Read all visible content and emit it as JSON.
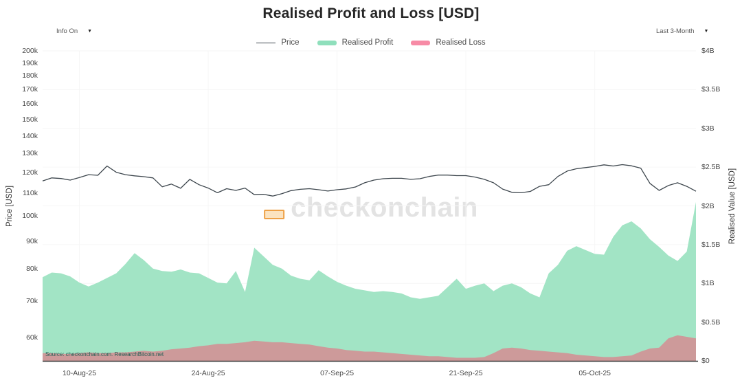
{
  "header": {
    "title": "Realised Profit and Loss [USD]"
  },
  "controls": {
    "info_dropdown": {
      "label": "Info On",
      "icon": "▼"
    },
    "range_dropdown": {
      "label": "Last 3-Month",
      "icon": "▼"
    }
  },
  "legend": {
    "items": [
      {
        "label": "Price",
        "swatch": "line",
        "color": "#3d464d"
      },
      {
        "label": "Realised Profit",
        "swatch": "area",
        "color": "#8fdfbc"
      },
      {
        "label": "Realised Loss",
        "swatch": "area",
        "color": "#f78ba6"
      }
    ]
  },
  "watermark": {
    "text": "checkonchain",
    "accent_color": "#eea147"
  },
  "source_note": "Source: checkonchain.com. ResearchBitcoin.net",
  "chart_data": {
    "type": "area",
    "title": "Realised Profit and Loss [USD]",
    "legend_position": "top-center",
    "grid": "very-faint",
    "x": {
      "interval": "daily",
      "n_points": 72,
      "start_label": "06-Aug-25",
      "end_label": "16-Oct-25",
      "tick_labels": [
        "10-Aug-25",
        "24-Aug-25",
        "07-Sep-25",
        "21-Sep-25",
        "05-Oct-25"
      ],
      "tick_indices": [
        4,
        18,
        32,
        46,
        60
      ]
    },
    "axes": {
      "left": {
        "label": "Price [USD]",
        "scale": "log",
        "ylim": [
          54380,
          200000
        ],
        "tick_labels": [
          "200k",
          "190k",
          "180k",
          "170k",
          "160k",
          "150k",
          "140k",
          "130k",
          "120k",
          "110k",
          "100k",
          "90k",
          "80k",
          "70k",
          "60k"
        ],
        "tick_values": [
          200000,
          190000,
          180000,
          170000,
          160000,
          150000,
          140000,
          130000,
          120000,
          110000,
          100000,
          90000,
          80000,
          70000,
          60000
        ]
      },
      "right": {
        "label": "Realised Value [USD]",
        "scale": "linear",
        "unit": "billion USD",
        "ylim": [
          0,
          4
        ],
        "tick_labels": [
          "$4B",
          "$3.5B",
          "$3B",
          "$2.5B",
          "$2B",
          "$1.5B",
          "$1B",
          "$0.5B",
          "$0"
        ],
        "tick_values": [
          4,
          3.5,
          3,
          2.5,
          2,
          1.5,
          1,
          0.5,
          0
        ]
      }
    },
    "series": [
      {
        "name": "Price",
        "type": "line",
        "axis": "left",
        "color": "#3d464d",
        "unit": "USD",
        "values": [
          115800,
          117300,
          117000,
          116200,
          117500,
          118900,
          118600,
          123300,
          120100,
          118900,
          118300,
          117900,
          117300,
          113000,
          114300,
          112300,
          116600,
          114000,
          112400,
          110200,
          112100,
          111300,
          112400,
          109300,
          109500,
          108700,
          109800,
          111200,
          111800,
          112100,
          111600,
          111000,
          111600,
          112000,
          112900,
          114900,
          116200,
          116900,
          117100,
          117100,
          116600,
          116900,
          118000,
          118700,
          118700,
          118400,
          118400,
          117700,
          116600,
          114900,
          111900,
          110400,
          110200,
          110800,
          113200,
          114000,
          118000,
          120700,
          121900,
          122500,
          123100,
          123900,
          123300,
          124000,
          123400,
          122200,
          114600,
          111300,
          113600,
          114900,
          113200,
          110900
        ]
      },
      {
        "name": "Realised Profit",
        "type": "area",
        "axis": "right",
        "color": "#a2e4c5",
        "legend_color": "#8fdfbc",
        "unit": "billion USD",
        "values": [
          1.08,
          1.14,
          1.13,
          1.09,
          1.01,
          0.96,
          1.01,
          1.07,
          1.13,
          1.25,
          1.39,
          1.3,
          1.19,
          1.16,
          1.15,
          1.18,
          1.14,
          1.13,
          1.07,
          1.01,
          1.0,
          1.16,
          0.89,
          1.46,
          1.35,
          1.24,
          1.19,
          1.1,
          1.06,
          1.04,
          1.17,
          1.09,
          1.02,
          0.97,
          0.93,
          0.91,
          0.89,
          0.9,
          0.89,
          0.87,
          0.82,
          0.8,
          0.82,
          0.84,
          0.95,
          1.06,
          0.93,
          0.97,
          1.0,
          0.9,
          0.97,
          1.0,
          0.95,
          0.87,
          0.82,
          1.13,
          1.24,
          1.42,
          1.48,
          1.43,
          1.38,
          1.37,
          1.6,
          1.75,
          1.8,
          1.71,
          1.57,
          1.47,
          1.36,
          1.29,
          1.41,
          2.05
        ]
      },
      {
        "name": "Realised Loss",
        "type": "area",
        "axis": "right",
        "color": "#cd9a9a",
        "legend_color": "#f78ba6",
        "unit": "billion USD",
        "values": [
          0.1,
          0.1,
          0.09,
          0.09,
          0.1,
          0.11,
          0.1,
          0.1,
          0.11,
          0.11,
          0.12,
          0.13,
          0.12,
          0.13,
          0.15,
          0.16,
          0.17,
          0.19,
          0.2,
          0.22,
          0.22,
          0.23,
          0.24,
          0.26,
          0.25,
          0.24,
          0.24,
          0.23,
          0.22,
          0.21,
          0.19,
          0.17,
          0.16,
          0.14,
          0.13,
          0.12,
          0.12,
          0.11,
          0.1,
          0.09,
          0.08,
          0.07,
          0.06,
          0.06,
          0.05,
          0.04,
          0.04,
          0.04,
          0.05,
          0.1,
          0.16,
          0.17,
          0.16,
          0.14,
          0.13,
          0.12,
          0.11,
          0.1,
          0.08,
          0.07,
          0.06,
          0.05,
          0.05,
          0.06,
          0.07,
          0.12,
          0.16,
          0.17,
          0.29,
          0.33,
          0.31,
          0.29
        ]
      }
    ]
  }
}
